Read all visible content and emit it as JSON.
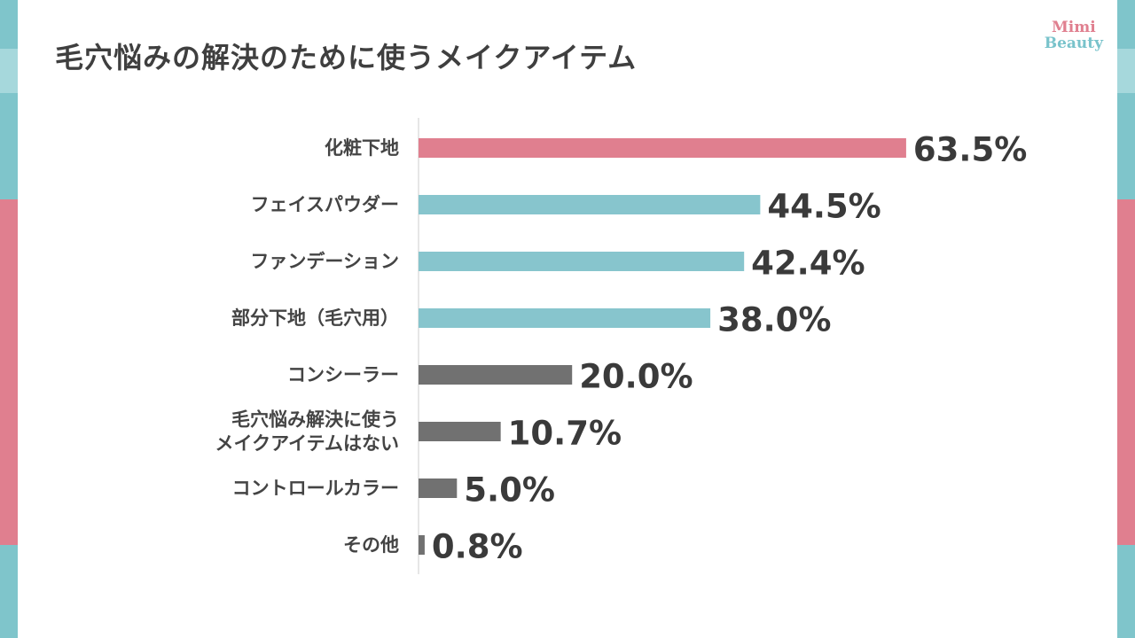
{
  "title": "毛穴悩みの解決のために使うメイクアイテム",
  "logo": {
    "line1": "Mimi",
    "line2": "Beauty"
  },
  "colors": {
    "pink": "#e07f8f",
    "teal": "#87c5cd",
    "gray": "#717171",
    "side_teal": "#7fc5cb",
    "side_light": "#a6d8dc",
    "side_pink": "#e07f8f"
  },
  "chart_data": {
    "type": "bar",
    "orientation": "horizontal",
    "title": "毛穴悩みの解決のために使うメイクアイテム",
    "unit": "%",
    "xlim": [
      0,
      100
    ],
    "categories": [
      [
        "化粧下地"
      ],
      [
        "フェイスパウダー"
      ],
      [
        "ファンデーション"
      ],
      [
        "部分下地（毛穴用）"
      ],
      [
        "コンシーラー"
      ],
      [
        "毛穴悩み解決に使う",
        "メイクアイテムはない"
      ],
      [
        "コントロールカラー"
      ],
      [
        "その他"
      ]
    ],
    "values": [
      63.5,
      44.5,
      42.4,
      38.0,
      20.0,
      10.7,
      5.0,
      0.8
    ],
    "value_labels": [
      "63.5%",
      "44.5%",
      "42.4%",
      "38.0%",
      "20.0%",
      "10.7%",
      "5.0%",
      "0.8%"
    ],
    "bar_colors": [
      "pink",
      "teal",
      "teal",
      "teal",
      "gray",
      "gray",
      "gray",
      "gray"
    ]
  }
}
